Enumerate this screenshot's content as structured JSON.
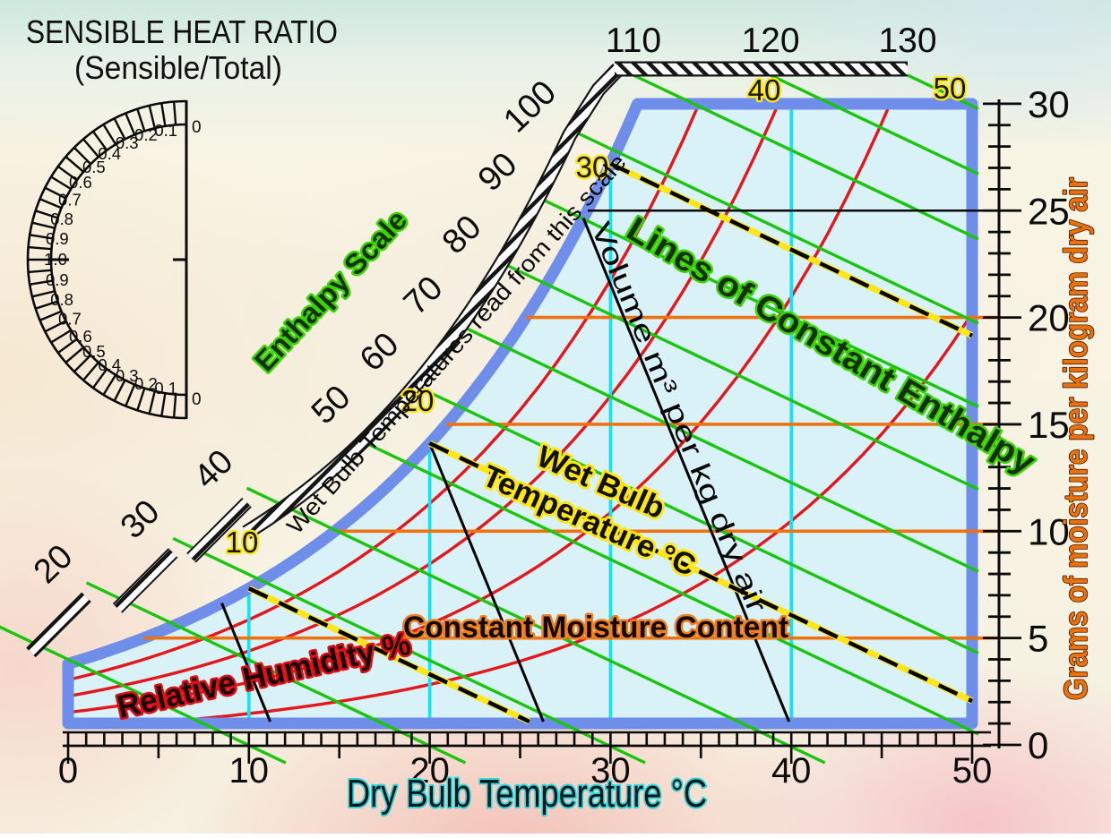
{
  "header": {
    "title_line1": "SENSIBLE HEAT RATIO",
    "title_line2": "(Sensible/Total)"
  },
  "labels": {
    "enthalpy_scale": "Enthalpy Scale",
    "constant_enthalpy": "Lines of Constant Enthalpy",
    "wet_bulb_note": "Wet Bulb Temperatures read from this scale",
    "wet_bulb_line1": "Wet Bulb",
    "wet_bulb_line2": "Temperature °C",
    "volume": "Volume m³ per kg dry air",
    "moisture": "Constant Moisture Content",
    "relative_humidity": "Relative Humidity %",
    "x_axis": "Dry Bulb Temperature °C",
    "y_axis": "Grams of moisture per kilogram dry air"
  },
  "chart_data": {
    "type": "psychrometric-chart",
    "x_axis": {
      "label": "Dry Bulb Temperature °C",
      "min": 0,
      "max": 50,
      "major_tick_labels": [
        "0",
        "10",
        "20",
        "30",
        "40",
        "50"
      ],
      "minor_step": 1
    },
    "y_axis": {
      "label": "Grams of moisture per kilogram dry air",
      "min": 0,
      "max": 30,
      "major_tick_labels": [
        "0",
        "5",
        "10",
        "15",
        "20",
        "25",
        "30"
      ],
      "minor_step": 1
    },
    "enthalpy": {
      "line_values": [
        10,
        20,
        30,
        40,
        50,
        60,
        70,
        80,
        90,
        100,
        110,
        120,
        130
      ],
      "diagonal_scale_labels": [
        "20",
        "30",
        "40",
        "50",
        "60",
        "70",
        "80",
        "90",
        "100"
      ],
      "top_scale_labels": [
        "110",
        "120",
        "130"
      ],
      "line_color": "#1bc50e",
      "text_outline_color": "#3bd400"
    },
    "wet_bulb": {
      "lines_drawn": [
        10,
        20,
        30
      ],
      "scale_labels": [
        "10",
        "20",
        "30",
        "40",
        "50"
      ],
      "dash_color": "#000000",
      "underlay_color": "#ffe619"
    },
    "relative_humidity": {
      "curve_fractions": [
        0.2,
        0.4,
        0.6,
        0.8
      ],
      "color": "#e3171c"
    },
    "moisture_lines": {
      "values": [
        5,
        10,
        15,
        20
      ],
      "color": "#ee7210"
    },
    "dry_bulb_lines": {
      "values": [
        10,
        20,
        30,
        40
      ],
      "color": "#1cdff0"
    },
    "volume_lines": {
      "dry_bulb_anchors": [
        8.5,
        20,
        28.5
      ],
      "color": "#000000"
    },
    "callout_line": {
      "moisture_value": 25
    },
    "saturation": {
      "border_color": "#6e8ee9",
      "fill_color": "#d8f2f8"
    },
    "shr_protractor": {
      "labels": [
        "0",
        "0.1",
        "0.2",
        "0.3",
        "0.4",
        "0.5",
        "0.6",
        "0.7",
        "0.8",
        "0.9",
        "1.0",
        "0.9",
        "0.8",
        "0.7",
        "0.6",
        "0.5",
        "0.4",
        "0.3",
        "0.2",
        "0.1",
        "0"
      ],
      "tick_step": 0.05
    }
  }
}
